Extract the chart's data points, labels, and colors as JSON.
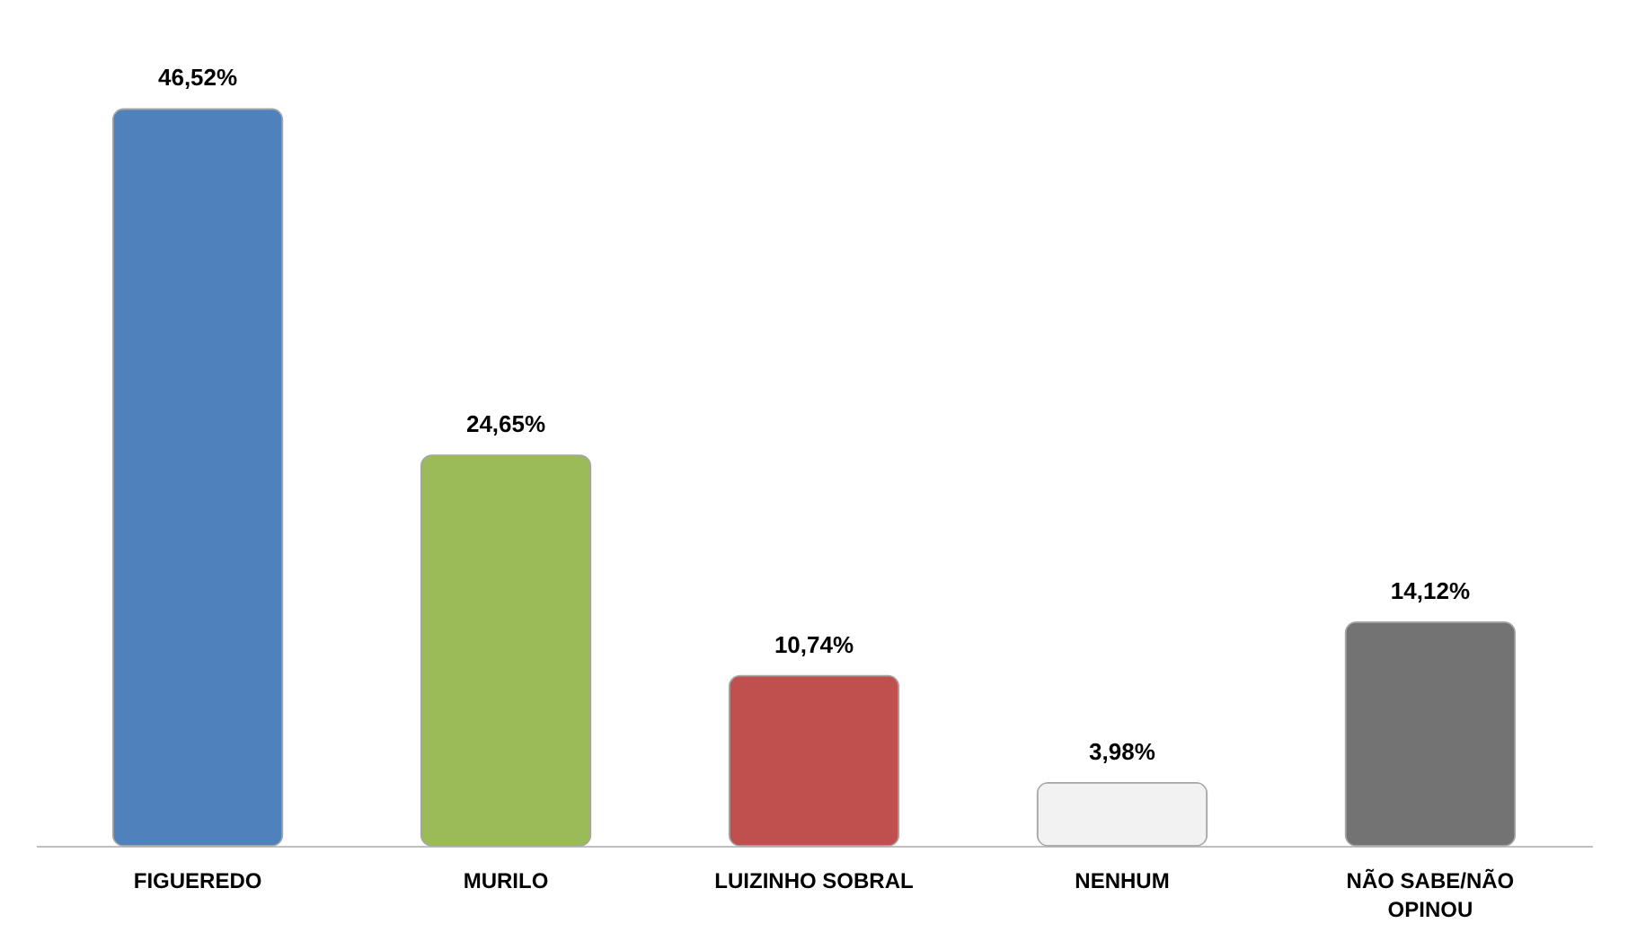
{
  "chart_data": {
    "type": "bar",
    "categories": [
      "FIGUEREDO",
      "MURILO",
      "LUIZINHO SOBRAL",
      "NENHUM",
      "NÃO SABE/NÃO OPINOU"
    ],
    "values": [
      46.52,
      24.65,
      10.74,
      3.98,
      14.12
    ],
    "colors": [
      "#4f81bd",
      "#9bbb59",
      "#c0504d",
      "#f2f2f2",
      "#737373"
    ],
    "value_labels": [
      "46,52%",
      "24,65%",
      "10,74%",
      "3,98%",
      "14,12%"
    ]
  }
}
